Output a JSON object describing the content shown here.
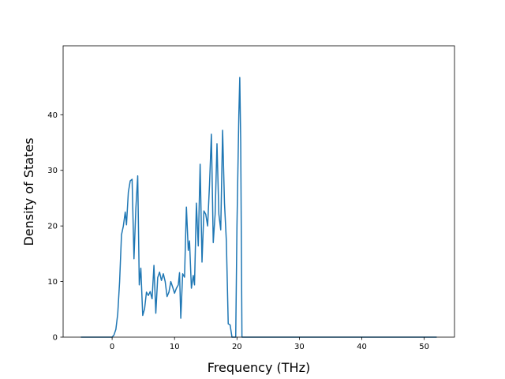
{
  "chart_data": {
    "type": "line",
    "title": "",
    "xlabel": "Frequency (THz)",
    "ylabel": "Density of States",
    "xlim": [
      -7.85,
      54.85
    ],
    "ylim": [
      0,
      52.4
    ],
    "xticks": [
      0,
      10,
      20,
      30,
      40,
      50
    ],
    "yticks": [
      0,
      10,
      20,
      30,
      40
    ],
    "grid": false,
    "legend": "none",
    "series": [
      {
        "color": "#1f77b4",
        "points": [
          [
            -5.0,
            0.0
          ],
          [
            -4.0,
            0.0
          ],
          [
            -2.0,
            0.0
          ],
          [
            -1.0,
            0.0
          ],
          [
            -0.2,
            0.0
          ],
          [
            0.0,
            0.0
          ],
          [
            0.3,
            0.4
          ],
          [
            0.6,
            1.4
          ],
          [
            0.9,
            4.2
          ],
          [
            1.2,
            10.0
          ],
          [
            1.5,
            18.4
          ],
          [
            1.8,
            20.0
          ],
          [
            2.1,
            22.5
          ],
          [
            2.3,
            20.2
          ],
          [
            2.6,
            26.1
          ],
          [
            2.9,
            28.1
          ],
          [
            3.2,
            28.4
          ],
          [
            3.5,
            14.1
          ],
          [
            3.8,
            23.1
          ],
          [
            4.1,
            29.0
          ],
          [
            4.35,
            9.4
          ],
          [
            4.6,
            12.4
          ],
          [
            4.9,
            3.9
          ],
          [
            5.2,
            5.1
          ],
          [
            5.5,
            8.1
          ],
          [
            5.8,
            7.5
          ],
          [
            6.1,
            8.2
          ],
          [
            6.4,
            6.9
          ],
          [
            6.7,
            12.9
          ],
          [
            7.0,
            4.3
          ],
          [
            7.3,
            10.7
          ],
          [
            7.6,
            11.7
          ],
          [
            7.9,
            10.2
          ],
          [
            8.2,
            11.4
          ],
          [
            8.5,
            10.0
          ],
          [
            8.8,
            7.3
          ],
          [
            9.1,
            8.1
          ],
          [
            9.4,
            10.0
          ],
          [
            9.7,
            9.0
          ],
          [
            10.0,
            7.9
          ],
          [
            10.3,
            8.8
          ],
          [
            10.6,
            9.4
          ],
          [
            10.8,
            11.6
          ],
          [
            11.0,
            3.4
          ],
          [
            11.3,
            11.4
          ],
          [
            11.6,
            10.8
          ],
          [
            11.9,
            23.4
          ],
          [
            12.2,
            15.6
          ],
          [
            12.4,
            17.3
          ],
          [
            12.7,
            8.8
          ],
          [
            13.0,
            11.1
          ],
          [
            13.2,
            9.4
          ],
          [
            13.5,
            24.1
          ],
          [
            13.8,
            16.4
          ],
          [
            14.1,
            31.1
          ],
          [
            14.4,
            13.5
          ],
          [
            14.7,
            22.7
          ],
          [
            15.0,
            22.1
          ],
          [
            15.3,
            20.0
          ],
          [
            15.6,
            27.4
          ],
          [
            15.9,
            36.5
          ],
          [
            16.2,
            17.0
          ],
          [
            16.5,
            22.1
          ],
          [
            16.8,
            34.8
          ],
          [
            17.1,
            22.1
          ],
          [
            17.4,
            19.3
          ],
          [
            17.7,
            37.2
          ],
          [
            18.0,
            24.1
          ],
          [
            18.3,
            17.3
          ],
          [
            18.6,
            2.4
          ],
          [
            18.9,
            2.2
          ],
          [
            19.2,
            0.0
          ],
          [
            19.5,
            0.0
          ],
          [
            19.8,
            0.0
          ],
          [
            20.0,
            20.0
          ],
          [
            20.3,
            40.0
          ],
          [
            20.45,
            46.7
          ],
          [
            20.6,
            35.0
          ],
          [
            20.8,
            0.0
          ],
          [
            21.0,
            0.0
          ],
          [
            22.0,
            0.0
          ],
          [
            30.0,
            0.0
          ],
          [
            40.0,
            0.0
          ],
          [
            50.0,
            0.0
          ],
          [
            52.0,
            0.0
          ]
        ]
      }
    ]
  }
}
